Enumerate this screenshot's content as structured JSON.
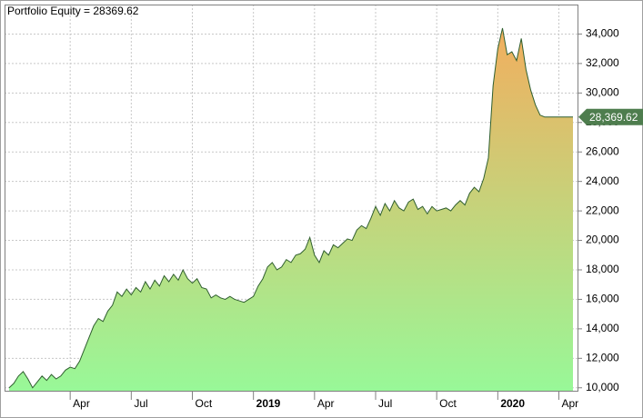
{
  "chart_data": {
    "type": "area",
    "title": "Portfolio Equity = 28369.62",
    "categories": [
      null,
      null,
      null,
      null,
      null,
      null,
      null,
      null,
      null,
      null,
      null,
      null,
      null,
      "Apr",
      null,
      null,
      null,
      null,
      null,
      null,
      null,
      null,
      null,
      null,
      null,
      null,
      "Jul",
      null,
      null,
      null,
      null,
      null,
      null,
      null,
      null,
      null,
      null,
      null,
      null,
      "Oct",
      null,
      null,
      null,
      null,
      null,
      null,
      null,
      null,
      null,
      null,
      null,
      null,
      "2019",
      null,
      null,
      null,
      null,
      null,
      null,
      null,
      null,
      null,
      null,
      null,
      null,
      "Apr",
      null,
      null,
      null,
      null,
      null,
      null,
      null,
      null,
      null,
      null,
      null,
      null,
      "Jul",
      null,
      null,
      null,
      null,
      null,
      null,
      null,
      null,
      null,
      null,
      null,
      null,
      "Oct",
      null,
      null,
      null,
      null,
      null,
      null,
      null,
      null,
      null,
      null,
      null,
      null,
      "2020",
      null,
      null,
      null,
      null,
      null,
      null,
      null,
      null,
      null,
      null,
      null,
      null,
      "Apr",
      null,
      null,
      null
    ],
    "values": [
      10000,
      10300,
      10800,
      11100,
      10600,
      10000,
      10400,
      10800,
      10500,
      10900,
      10600,
      10800,
      11200,
      11400,
      11300,
      11800,
      12600,
      13400,
      14200,
      14700,
      14500,
      15200,
      15600,
      16500,
      16200,
      16700,
      16300,
      16800,
      16500,
      17200,
      16700,
      17300,
      16900,
      17600,
      17200,
      17700,
      17300,
      18000,
      17400,
      17100,
      17400,
      16800,
      16700,
      16100,
      16300,
      16100,
      16000,
      16200,
      16000,
      15900,
      15800,
      16000,
      16200,
      16900,
      17400,
      18200,
      18500,
      18000,
      18200,
      18700,
      18500,
      19000,
      19100,
      19400,
      20200,
      19000,
      18500,
      19300,
      19000,
      19700,
      19500,
      19800,
      20100,
      20000,
      20700,
      21000,
      20800,
      21500,
      22300,
      21700,
      22500,
      22000,
      22700,
      22200,
      22000,
      22600,
      22800,
      22100,
      22300,
      21800,
      22300,
      22000,
      22100,
      22200,
      22000,
      22400,
      22700,
      22400,
      23200,
      23600,
      23300,
      24200,
      25600,
      30500,
      33000,
      34400,
      32600,
      32800,
      32200,
      33700,
      31600,
      30200,
      29200,
      28500,
      28369.62,
      28369.62,
      28369.62,
      28369.62,
      28369.62,
      28369.62,
      28369.62
    ],
    "end_label": "28,369.62",
    "ylim": [
      9800,
      36000
    ],
    "yticks": [
      {
        "value": 10000,
        "label": "10,000"
      },
      {
        "value": 12000,
        "label": "12,000"
      },
      {
        "value": 14000,
        "label": "14,000"
      },
      {
        "value": 16000,
        "label": "16,000"
      },
      {
        "value": 18000,
        "label": "18,000"
      },
      {
        "value": 20000,
        "label": "20,000"
      },
      {
        "value": 22000,
        "label": "22,000"
      },
      {
        "value": 24000,
        "label": "24,000"
      },
      {
        "value": 26000,
        "label": "26,000"
      },
      {
        "value": 28000,
        "label": "28,000"
      },
      {
        "value": 30000,
        "label": "30,000"
      },
      {
        "value": 32000,
        "label": "32,000"
      },
      {
        "value": 34000,
        "label": "34,000"
      }
    ],
    "grid": true,
    "line_color": "#2f5f2f",
    "fill_gradient": [
      "#f2ae5e",
      "#98f898"
    ],
    "end_label_color": "#4e7d4e"
  }
}
